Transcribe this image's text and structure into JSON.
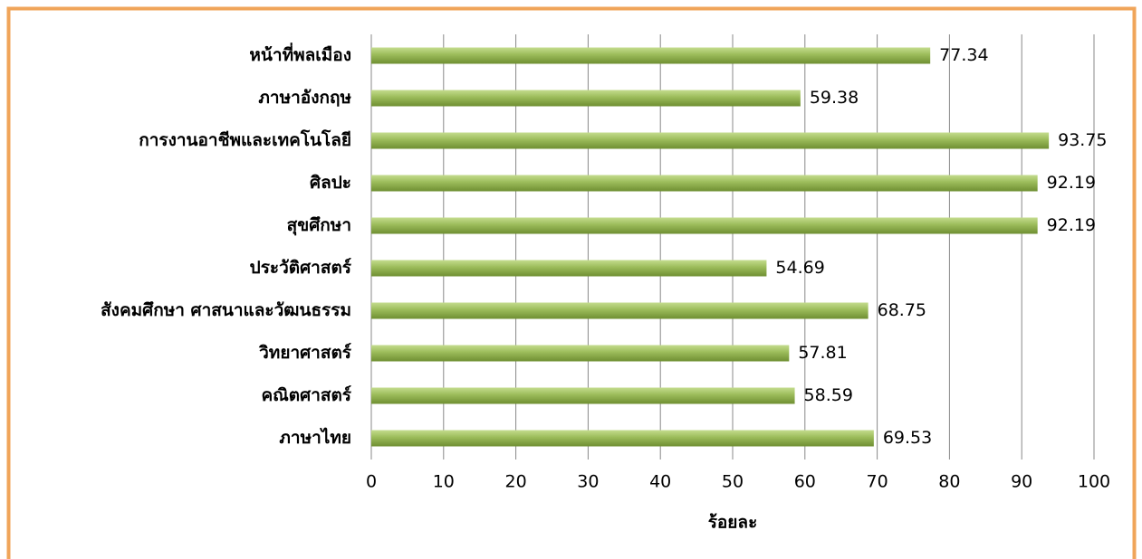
{
  "chart_data": {
    "type": "bar",
    "orientation": "horizontal",
    "categories": [
      "หน้าที่พลเมือง",
      "ภาษาอังกฤษ",
      "การงานอาชีพและเทคโนโลยี",
      "ศิลปะ",
      "สุขศึกษา",
      "ประวัติศาสตร์",
      "สังคมศึกษา ศาสนาและวัฒนธรรม",
      "วิทยาศาสตร์",
      "คณิตศาสตร์",
      "ภาษาไทย"
    ],
    "values": [
      77.34,
      59.38,
      93.75,
      92.19,
      92.19,
      54.69,
      68.75,
      57.81,
      58.59,
      69.53
    ],
    "color": "#9bbb59",
    "xlabel": "ร้อยละ",
    "xlim": [
      0,
      100
    ],
    "xticks": [
      0,
      10,
      20,
      30,
      40,
      50,
      60,
      70,
      80,
      90,
      100
    ],
    "grid": true
  }
}
